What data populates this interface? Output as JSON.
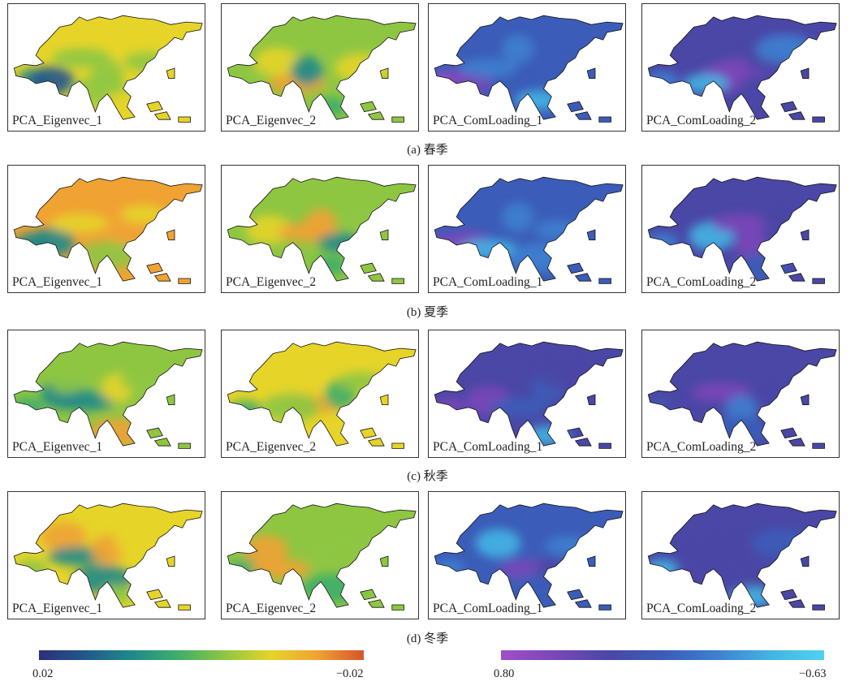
{
  "rows": [
    {
      "caption": "(a) 春季",
      "panels": [
        {
          "label": "PCA_Eigenvec_1",
          "palette": "viridis_rev",
          "base": 0.78,
          "blobs": [
            [
              0.13,
              0.58,
              0.28
            ],
            [
              0.22,
              0.6,
              0.2
            ],
            [
              0.37,
              0.42,
              0.62
            ],
            [
              0.5,
              0.55,
              0.55
            ],
            [
              0.7,
              0.45,
              0.62
            ],
            [
              0.46,
              0.68,
              0.6
            ],
            [
              0.58,
              0.76,
              0.72
            ]
          ]
        },
        {
          "label": "PCA_Eigenvec_2",
          "palette": "viridis_rev",
          "base": 0.6,
          "blobs": [
            [
              0.13,
              0.58,
              0.55
            ],
            [
              0.28,
              0.45,
              0.75
            ],
            [
              0.38,
              0.62,
              0.85
            ],
            [
              0.43,
              0.52,
              0.3
            ],
            [
              0.62,
              0.42,
              0.55
            ],
            [
              0.72,
              0.5,
              0.7
            ],
            [
              0.55,
              0.8,
              0.45
            ]
          ]
        },
        {
          "label": "PCA_ComLoading_1",
          "palette": "cool",
          "base": 0.45,
          "blobs": [
            [
              0.1,
              0.6,
              0.05
            ],
            [
              0.2,
              0.6,
              0.15
            ],
            [
              0.3,
              0.5,
              0.6
            ],
            [
              0.45,
              0.35,
              0.7
            ],
            [
              0.55,
              0.75,
              0.85
            ],
            [
              0.7,
              0.55,
              0.5
            ]
          ]
        },
        {
          "label": "PCA_ComLoading_2",
          "palette": "cool",
          "base": 0.4,
          "blobs": [
            [
              0.1,
              0.6,
              0.6
            ],
            [
              0.4,
              0.58,
              0.2
            ],
            [
              0.5,
              0.5,
              0.15
            ],
            [
              0.6,
              0.42,
              0.25
            ],
            [
              0.32,
              0.62,
              0.85
            ],
            [
              0.72,
              0.35,
              0.65
            ]
          ]
        }
      ]
    },
    {
      "caption": "(b) 夏季",
      "panels": [
        {
          "label": "PCA_Eigenvec_1",
          "palette": "viridis_rev",
          "base": 0.8,
          "blobs": [
            [
              0.12,
              0.6,
              0.3
            ],
            [
              0.22,
              0.6,
              0.35
            ],
            [
              0.36,
              0.45,
              0.7
            ],
            [
              0.6,
              0.5,
              0.85
            ],
            [
              0.68,
              0.38,
              0.65
            ],
            [
              0.5,
              0.7,
              0.55
            ]
          ]
        },
        {
          "label": "PCA_Eigenvec_2",
          "palette": "viridis_rev",
          "base": 0.55,
          "blobs": [
            [
              0.12,
              0.6,
              0.6
            ],
            [
              0.24,
              0.5,
              0.75
            ],
            [
              0.43,
              0.52,
              0.92
            ],
            [
              0.5,
              0.45,
              0.85
            ],
            [
              0.6,
              0.6,
              0.3
            ],
            [
              0.75,
              0.4,
              0.55
            ],
            [
              0.55,
              0.78,
              0.45
            ]
          ]
        },
        {
          "label": "PCA_ComLoading_1",
          "palette": "cool",
          "base": 0.45,
          "blobs": [
            [
              0.1,
              0.6,
              0.1
            ],
            [
              0.2,
              0.62,
              0.15
            ],
            [
              0.3,
              0.65,
              0.85
            ],
            [
              0.45,
              0.4,
              0.65
            ],
            [
              0.65,
              0.5,
              0.7
            ],
            [
              0.55,
              0.72,
              0.6
            ]
          ]
        },
        {
          "label": "PCA_ComLoading_2",
          "palette": "cool",
          "base": 0.35,
          "blobs": [
            [
              0.1,
              0.6,
              0.6
            ],
            [
              0.35,
              0.55,
              0.85
            ],
            [
              0.5,
              0.45,
              0.2
            ],
            [
              0.55,
              0.62,
              0.2
            ],
            [
              0.7,
              0.4,
              0.3
            ],
            [
              0.6,
              0.8,
              0.5
            ]
          ]
        }
      ]
    },
    {
      "caption": "(c) 秋季",
      "panels": [
        {
          "label": "PCA_Eigenvec_1",
          "palette": "viridis_rev",
          "base": 0.55,
          "blobs": [
            [
              0.1,
              0.6,
              0.45
            ],
            [
              0.28,
              0.5,
              0.25
            ],
            [
              0.4,
              0.55,
              0.3
            ],
            [
              0.55,
              0.45,
              0.65
            ],
            [
              0.68,
              0.4,
              0.6
            ],
            [
              0.55,
              0.8,
              0.85
            ],
            [
              0.3,
              0.42,
              0.55
            ]
          ]
        },
        {
          "label": "PCA_Eigenvec_2",
          "palette": "viridis_rev",
          "base": 0.65,
          "blobs": [
            [
              0.12,
              0.62,
              0.45
            ],
            [
              0.4,
              0.42,
              0.75
            ],
            [
              0.45,
              0.58,
              0.85
            ],
            [
              0.6,
              0.5,
              0.4
            ],
            [
              0.7,
              0.4,
              0.6
            ],
            [
              0.35,
              0.6,
              0.5
            ]
          ]
        },
        {
          "label": "PCA_ComLoading_1",
          "palette": "cool",
          "base": 0.38,
          "blobs": [
            [
              0.1,
              0.6,
              0.1
            ],
            [
              0.3,
              0.55,
              0.1
            ],
            [
              0.45,
              0.6,
              0.45
            ],
            [
              0.6,
              0.45,
              0.5
            ],
            [
              0.6,
              0.82,
              0.9
            ],
            [
              0.7,
              0.35,
              0.4
            ]
          ]
        },
        {
          "label": "PCA_ComLoading_2",
          "palette": "cool",
          "base": 0.38,
          "blobs": [
            [
              0.12,
              0.6,
              0.5
            ],
            [
              0.22,
              0.6,
              0.25
            ],
            [
              0.4,
              0.48,
              0.2
            ],
            [
              0.5,
              0.62,
              0.7
            ],
            [
              0.65,
              0.5,
              0.3
            ],
            [
              0.5,
              0.78,
              0.55
            ]
          ]
        }
      ]
    },
    {
      "caption": "(d) 冬季",
      "panels": [
        {
          "label": "PCA_Eigenvec_1",
          "palette": "viridis_rev",
          "base": 0.78,
          "blobs": [
            [
              0.12,
              0.6,
              0.5
            ],
            [
              0.28,
              0.35,
              0.9
            ],
            [
              0.35,
              0.5,
              0.35
            ],
            [
              0.5,
              0.45,
              0.8
            ],
            [
              0.65,
              0.4,
              0.75
            ],
            [
              0.48,
              0.68,
              0.3
            ],
            [
              0.55,
              0.8,
              0.6
            ]
          ]
        },
        {
          "label": "PCA_Eigenvec_2",
          "palette": "viridis_rev",
          "base": 0.5,
          "blobs": [
            [
              0.12,
              0.6,
              0.45
            ],
            [
              0.22,
              0.45,
              0.9
            ],
            [
              0.3,
              0.6,
              0.8
            ],
            [
              0.5,
              0.45,
              0.55
            ],
            [
              0.65,
              0.4,
              0.5
            ],
            [
              0.55,
              0.75,
              0.45
            ]
          ]
        },
        {
          "label": "PCA_ComLoading_1",
          "palette": "cool",
          "base": 0.45,
          "blobs": [
            [
              0.1,
              0.6,
              0.6
            ],
            [
              0.35,
              0.4,
              0.85
            ],
            [
              0.5,
              0.6,
              0.2
            ],
            [
              0.62,
              0.62,
              0.25
            ],
            [
              0.7,
              0.42,
              0.6
            ],
            [
              0.55,
              0.75,
              0.55
            ]
          ]
        },
        {
          "label": "PCA_ComLoading_2",
          "palette": "cool",
          "base": 0.4,
          "blobs": [
            [
              0.1,
              0.6,
              0.85
            ],
            [
              0.35,
              0.5,
              0.3
            ],
            [
              0.5,
              0.45,
              0.25
            ],
            [
              0.6,
              0.65,
              0.4
            ],
            [
              0.55,
              0.82,
              0.8
            ],
            [
              0.7,
              0.4,
              0.45
            ]
          ]
        }
      ]
    }
  ],
  "colorbars": [
    {
      "name": "eigenvec-colorbar",
      "min_label": "0.02",
      "max_label": "−0.02",
      "colors": [
        "#2c2f7a",
        "#21588d",
        "#1e8a8a",
        "#3fae6a",
        "#8ec642",
        "#e6d429",
        "#f0a233",
        "#d6552a"
      ]
    },
    {
      "name": "comloading-colorbar",
      "min_label": "0.80",
      "max_label": "−0.63",
      "colors": [
        "#a14fc7",
        "#7a47b8",
        "#4a47a6",
        "#3b5cb8",
        "#3d80cf",
        "#43b4e3",
        "#4fd2f0"
      ]
    }
  ],
  "palettes": {
    "viridis_rev": [
      "#2c2f7a",
      "#21588d",
      "#1e8a8a",
      "#3fae6a",
      "#8ec642",
      "#e6d429",
      "#f0a233",
      "#d6552a"
    ],
    "cool": [
      "#a14fc7",
      "#7a47b8",
      "#4a47a6",
      "#3b5cb8",
      "#3d80cf",
      "#43b4e3",
      "#4fd2f0"
    ]
  }
}
